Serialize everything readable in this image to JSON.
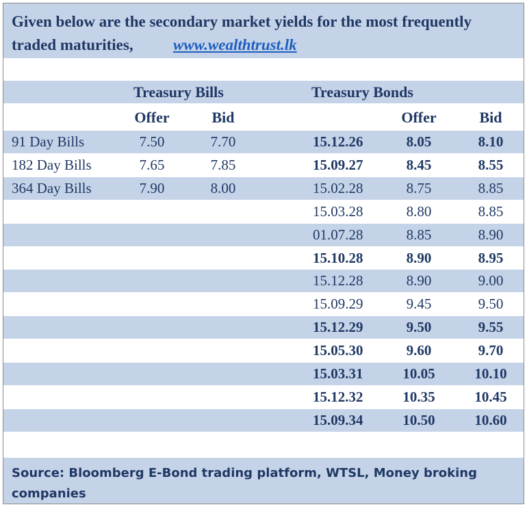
{
  "header": {
    "line1": "Given below are the secondary market yields for the most frequently",
    "line2": "traded maturities,",
    "link": "www.wealthtrust.lk"
  },
  "groups": {
    "bills": "Treasury Bills",
    "bonds": "Treasury Bonds"
  },
  "columns": {
    "bill_offer": "Offer",
    "bill_bid": "Bid",
    "bond_offer": "Offer",
    "bond_bid": "Bid"
  },
  "bills": [
    {
      "name": "91 Day Bills",
      "offer": "7.50",
      "bid": "7.70"
    },
    {
      "name": "182 Day Bills",
      "offer": "7.65",
      "bid": "7.85"
    },
    {
      "name": "364 Day Bills",
      "offer": "7.90",
      "bid": "8.00"
    }
  ],
  "bonds": [
    {
      "maturity": "15.12.26",
      "offer": "8.05",
      "bid": "8.10",
      "bold": true
    },
    {
      "maturity": "15.09.27",
      "offer": "8.45",
      "bid": "8.55",
      "bold": true
    },
    {
      "maturity": "15.02.28",
      "offer": "8.75",
      "bid": "8.85",
      "bold": false
    },
    {
      "maturity": "15.03.28",
      "offer": "8.80",
      "bid": "8.85",
      "bold": false
    },
    {
      "maturity": "01.07.28",
      "offer": "8.85",
      "bid": "8.90",
      "bold": false
    },
    {
      "maturity": "15.10.28",
      "offer": "8.90",
      "bid": "8.95",
      "bold": true
    },
    {
      "maturity": "15.12.28",
      "offer": "8.90",
      "bid": "9.00",
      "bold": false
    },
    {
      "maturity": "15.09.29",
      "offer": "9.45",
      "bid": "9.50",
      "bold": false
    },
    {
      "maturity": "15.12.29",
      "offer": "9.50",
      "bid": "9.55",
      "bold": true
    },
    {
      "maturity": "15.05.30",
      "offer": "9.60",
      "bid": "9.70",
      "bold": true
    },
    {
      "maturity": "15.03.31",
      "offer": "10.05",
      "bid": "10.10",
      "bold": true
    },
    {
      "maturity": "15.12.32",
      "offer": "10.35",
      "bid": "10.45",
      "bold": true
    },
    {
      "maturity": "15.09.34",
      "offer": "10.50",
      "bid": "10.60",
      "bold": true
    }
  ],
  "footer": {
    "source": "Source: Bloomberg E-Bond trading platform, WTSL, Money broking companies"
  }
}
